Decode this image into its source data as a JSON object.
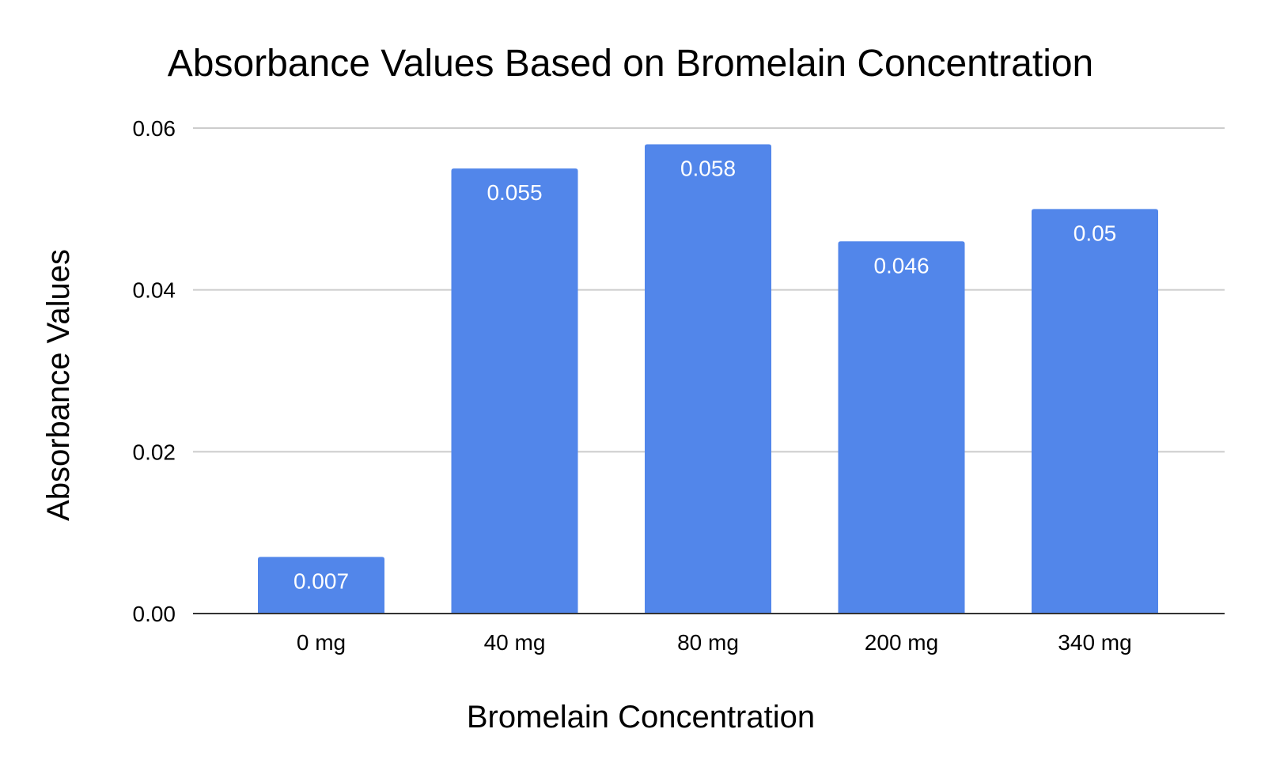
{
  "chart_data": {
    "type": "bar",
    "title": "Absorbance Values Based on Bromelain Concentration",
    "xlabel": "Bromelain Concentration",
    "ylabel": "Absorbance Values",
    "categories": [
      "0 mg",
      "40 mg",
      "80 mg",
      "200 mg",
      "340 mg"
    ],
    "values": [
      0.007,
      0.055,
      0.058,
      0.046,
      0.05
    ],
    "data_labels": [
      "0.007",
      "0.055",
      "0.058",
      "0.046",
      "0.05"
    ],
    "ylim": [
      0,
      0.06
    ],
    "y_ticks": [
      0,
      0.02,
      0.04,
      0.06
    ],
    "y_tick_labels": [
      "0.00",
      "0.02",
      "0.04",
      "0.06"
    ],
    "grid": true,
    "legend": "none",
    "bar_color": "#5286ea"
  }
}
